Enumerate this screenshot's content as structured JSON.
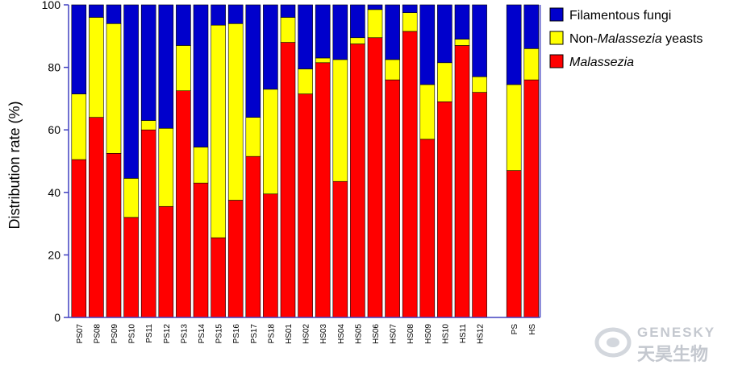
{
  "chart_data": {
    "type": "bar",
    "stacked": true,
    "categories": [
      "PS07",
      "PS08",
      "PS09",
      "PS10",
      "PS11",
      "PS12",
      "PS13",
      "PS14",
      "PS15",
      "PS16",
      "PS17",
      "PS18",
      "HS01",
      "HS02",
      "HS03",
      "HS04",
      "HS05",
      "HS06",
      "HS07",
      "HS08",
      "HS09",
      "HS10",
      "HS11",
      "HS12",
      "PS",
      "HS"
    ],
    "group_gap_after": "HS12",
    "series": [
      {
        "name": "Malassezia",
        "color": "#ff0000",
        "values": [
          50.5,
          64,
          52.5,
          32,
          60,
          35.5,
          72.5,
          43,
          25.5,
          37.5,
          51.5,
          39.5,
          88,
          71.5,
          81.5,
          43.5,
          87.5,
          89.5,
          76,
          91.5,
          57,
          69,
          87,
          72,
          47,
          76
        ]
      },
      {
        "name": "Non-Malassezia yeasts",
        "color": "#ffff00",
        "values": [
          21,
          32,
          41.5,
          12.5,
          3,
          25,
          14.5,
          11.5,
          68,
          56.5,
          12.5,
          33.5,
          8,
          8,
          1.5,
          39,
          2,
          9,
          6.5,
          6,
          17.5,
          12.5,
          2,
          5,
          27.5,
          10
        ]
      },
      {
        "name": "Filamentous fungi",
        "color": "#0000cc",
        "values": [
          28.5,
          4,
          6,
          55.5,
          37,
          39.5,
          13,
          45.5,
          6.5,
          6,
          36,
          27,
          4,
          20.5,
          17,
          17.5,
          10.5,
          1.5,
          17.5,
          2.5,
          25.5,
          18.5,
          11,
          23,
          25.5,
          14
        ]
      }
    ],
    "ylabel": "Distribution rate (%)",
    "xlabel": "",
    "ylim": [
      0,
      100
    ],
    "yticks": [
      0,
      20,
      40,
      60,
      80,
      100
    ],
    "grid": false,
    "legend": {
      "placement": "top-right",
      "entries": [
        {
          "series": "Filamentous fungi",
          "parts": [
            {
              "text": "Filamentous fungi",
              "italic": false
            }
          ]
        },
        {
          "series": "Non-Malassezia yeasts",
          "parts": [
            {
              "text": "Non-",
              "italic": false
            },
            {
              "text": "Malassezia",
              "italic": true
            },
            {
              "text": " yeasts",
              "italic": false
            }
          ]
        },
        {
          "series": "Malassezia",
          "parts": [
            {
              "text": "Malassezia",
              "italic": true
            }
          ]
        }
      ]
    },
    "axis_color": "#4040c0"
  },
  "watermark": {
    "brand_en": "GENESKY",
    "brand_cn": "天昊生物"
  }
}
